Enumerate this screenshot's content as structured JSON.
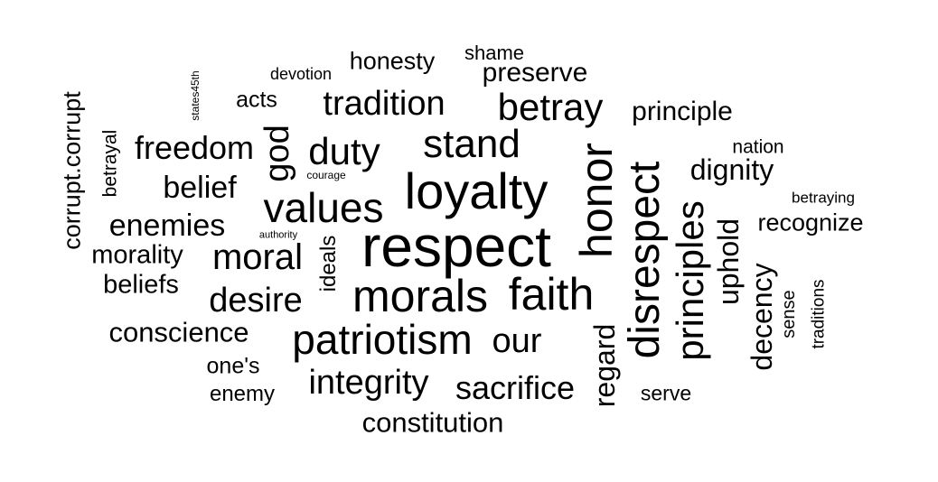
{
  "words": [
    "respect",
    "loyalty",
    "honor",
    "disrespect",
    "morals",
    "faith",
    "patriotism",
    "values",
    "stand",
    "betray",
    "tradition",
    "duty",
    "moral",
    "desire",
    "principles",
    "integrity",
    "sacrifice",
    "our",
    "freedom",
    "god",
    "belief",
    "enemies",
    "dignity",
    "constitution",
    "conscience",
    "regard",
    "decency",
    "uphold",
    "principle",
    "preserve",
    "recognize",
    "honesty",
    "beliefs",
    "morality",
    "corrupt.corrupt",
    "one's",
    "enemy",
    "acts",
    "ideals",
    "shame",
    "serve",
    "nation",
    "betrayal",
    "sense",
    "traditions",
    "devotion",
    "betraying",
    "states45th",
    "courage",
    "authority"
  ]
}
